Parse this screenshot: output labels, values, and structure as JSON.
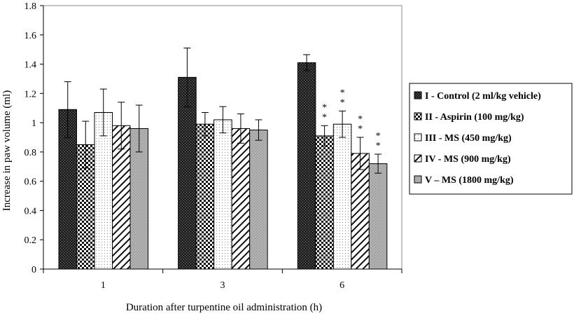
{
  "chart_data": {
    "type": "bar",
    "title": "",
    "xlabel": "Duration after turpentine oil administration (h)",
    "ylabel": "Increase in paw volume (ml)",
    "ylim": [
      0,
      1.8
    ],
    "yticks": [
      "0",
      "0.2",
      "0.4",
      "0.6",
      "0.8",
      "1",
      "1.2",
      "1.4",
      "1.6",
      "1.8"
    ],
    "categories": [
      "1",
      "3",
      "6"
    ],
    "series": [
      {
        "name": "I - Control (2 ml/kg vehicle)",
        "pattern": "dark",
        "values": [
          1.09,
          1.31,
          1.41
        ],
        "errors": [
          0.19,
          0.2,
          0.055
        ],
        "significance": [
          "",
          "",
          ""
        ]
      },
      {
        "name": "II - Aspirin (100 mg/kg)",
        "pattern": "checker",
        "values": [
          0.85,
          0.99,
          0.91
        ],
        "errors": [
          0.16,
          0.08,
          0.07
        ],
        "significance": [
          "",
          "",
          "**"
        ]
      },
      {
        "name": "III - MS (450 mg/kg)",
        "pattern": "dots",
        "values": [
          1.07,
          1.02,
          0.99
        ],
        "errors": [
          0.16,
          0.09,
          0.09
        ],
        "significance": [
          "",
          "",
          "**"
        ]
      },
      {
        "name": "IV - MS (900 mg/kg)",
        "pattern": "diagonal",
        "values": [
          0.98,
          0.96,
          0.79
        ],
        "errors": [
          0.16,
          0.1,
          0.11
        ],
        "significance": [
          "",
          "",
          "**"
        ]
      },
      {
        "name": "V – MS (1800 mg/kg)",
        "pattern": "gray",
        "values": [
          0.96,
          0.95,
          0.72
        ],
        "errors": [
          0.16,
          0.07,
          0.065
        ],
        "significance": [
          "",
          "",
          "**"
        ]
      }
    ],
    "grid": false,
    "legend_position": "right"
  }
}
